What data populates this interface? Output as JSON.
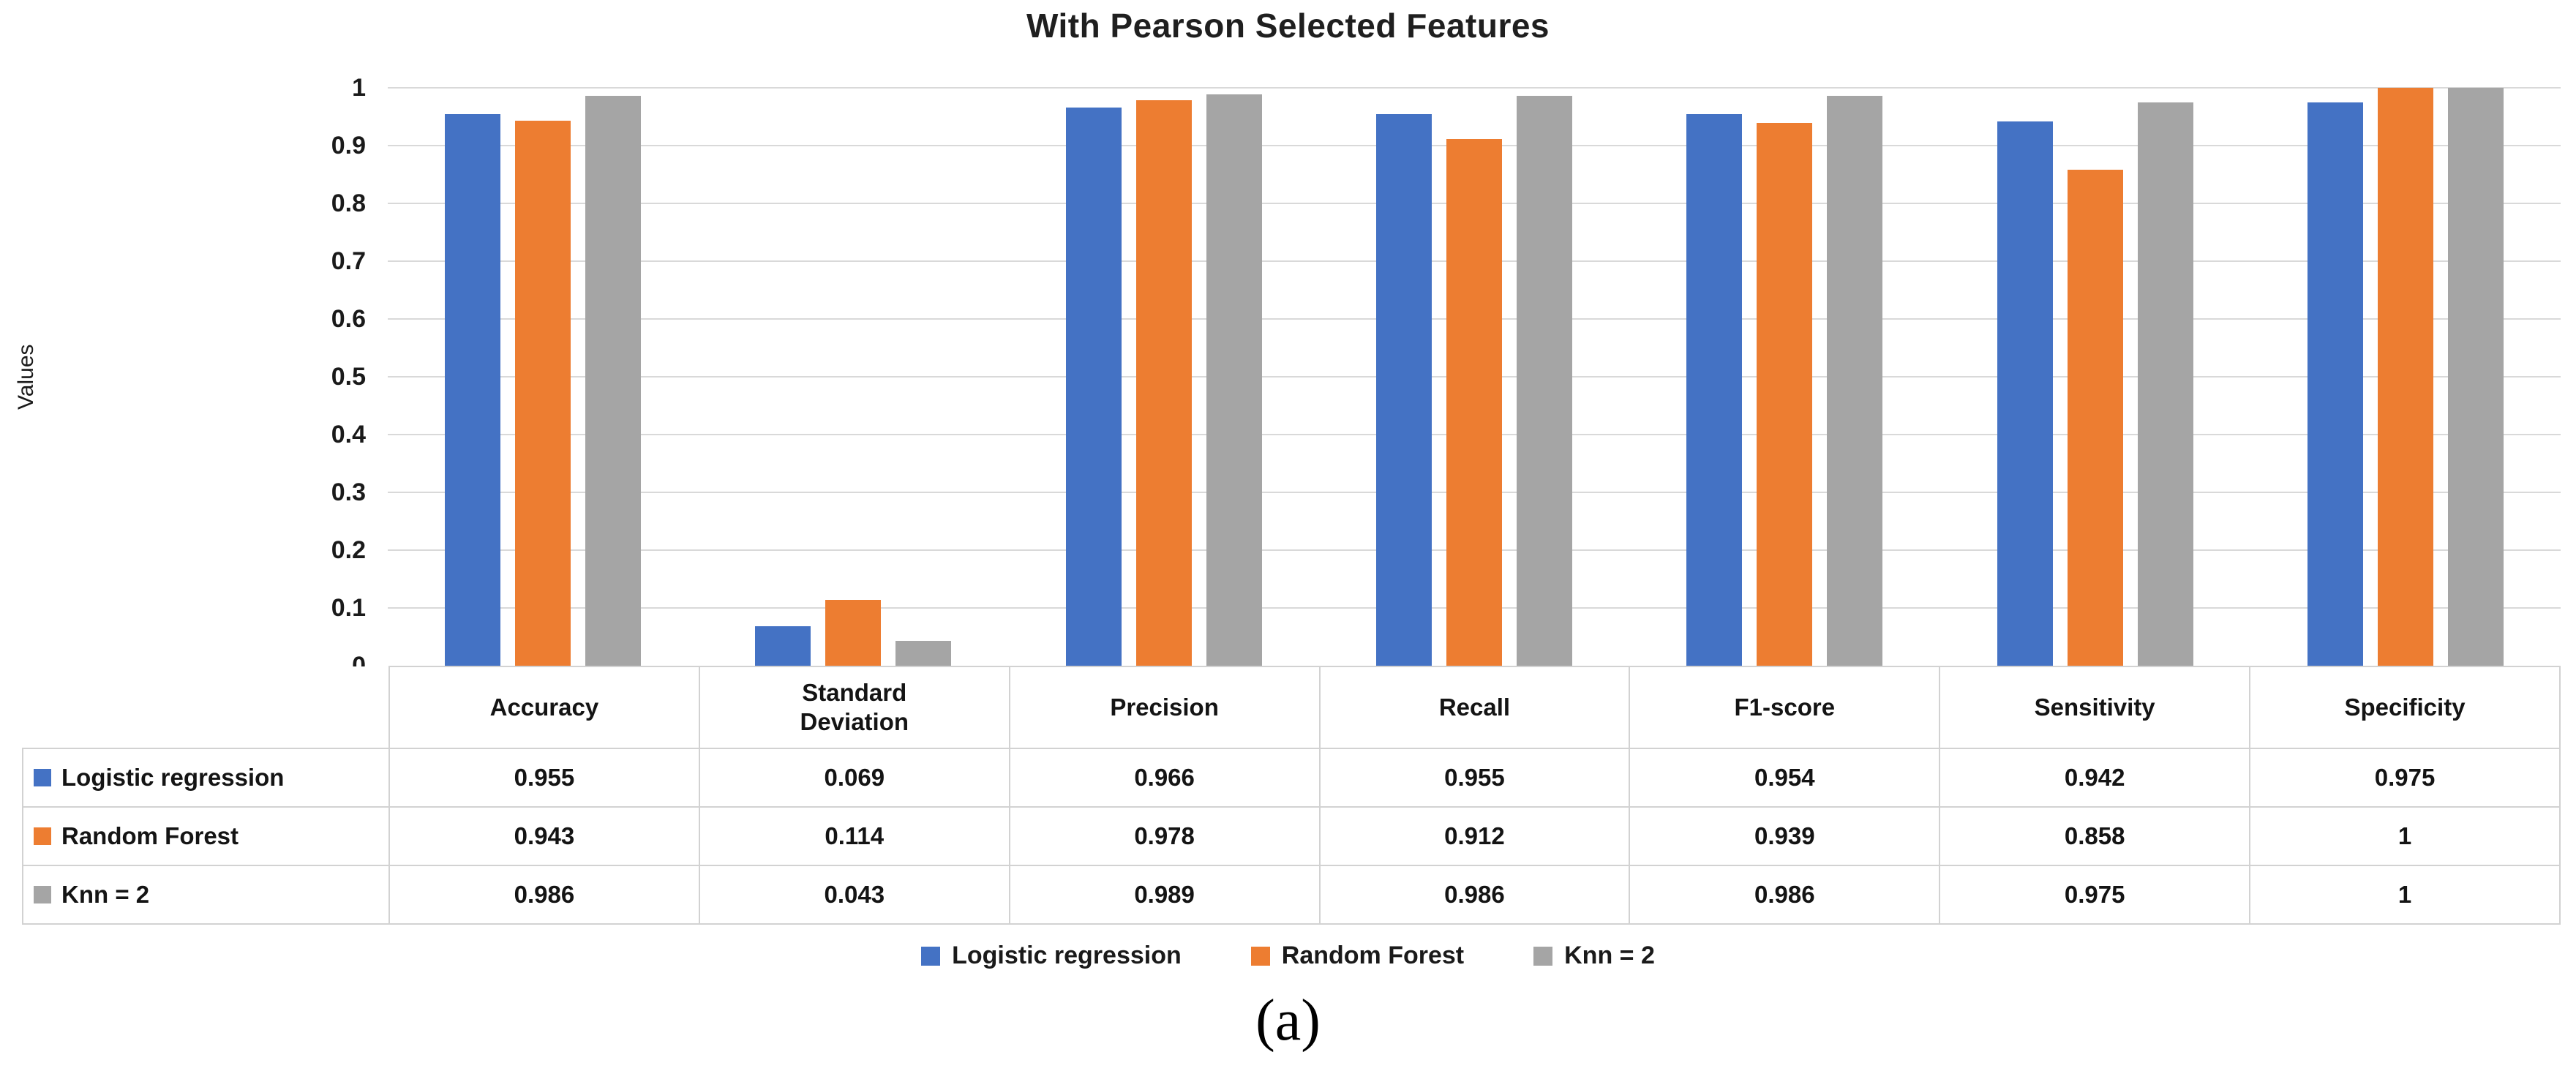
{
  "figure": {
    "caption": "(a)"
  },
  "chart_data": {
    "type": "bar",
    "title": "With Pearson Selected Features",
    "y_axis_title": "Values",
    "categories": [
      "Accuracy",
      "Standard Deviation",
      "Precision",
      "Recall",
      "F1-score",
      "Sensitivity",
      "Specificity"
    ],
    "y_ticks": [
      1,
      0.9,
      0.8,
      0.7,
      0.6,
      0.5,
      0.4,
      0.3,
      0.2,
      0.1,
      0
    ],
    "ylim": [
      0,
      1
    ],
    "grid": true,
    "legend_position": "bottom",
    "series": [
      {
        "name": "Logistic regression",
        "color": "#4472C4",
        "values": [
          0.955,
          0.069,
          0.966,
          0.955,
          0.954,
          0.942,
          0.975
        ]
      },
      {
        "name": "Random Forest",
        "color": "#ED7D31",
        "values": [
          0.943,
          0.114,
          0.978,
          0.912,
          0.939,
          0.858,
          1
        ]
      },
      {
        "name": "Knn = 2",
        "color": "#A5A5A5",
        "values": [
          0.986,
          0.043,
          0.989,
          0.986,
          0.986,
          0.975,
          1
        ]
      }
    ],
    "colors": {
      "grid": "#d9d9d9",
      "table_border": "#d2d2d2",
      "text": "#1a1a1a"
    }
  }
}
